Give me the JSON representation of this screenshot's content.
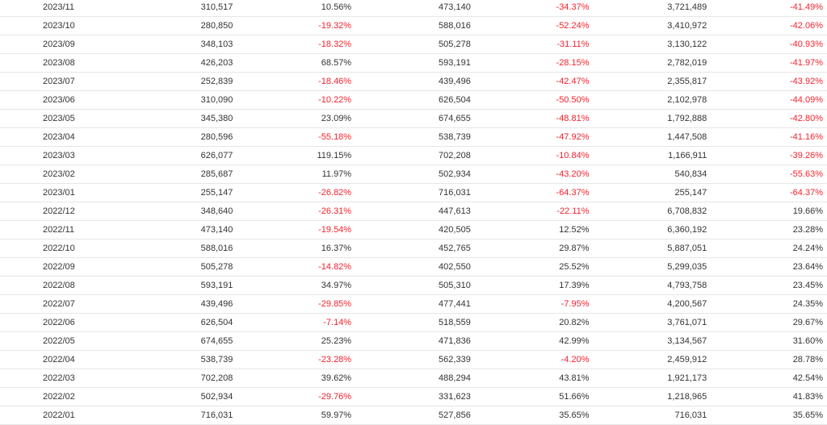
{
  "colors": {
    "negative": "#f5222d",
    "text": "#333333",
    "row_border": "#e6e6e6"
  },
  "rows": [
    [
      "2023/11",
      "310,517",
      "10.56%",
      "473,140",
      "-34.37%",
      "3,721,489",
      "-41.49%"
    ],
    [
      "2023/10",
      "280,850",
      "-19.32%",
      "588,016",
      "-52.24%",
      "3,410,972",
      "-42.06%"
    ],
    [
      "2023/09",
      "348,103",
      "-18.32%",
      "505,278",
      "-31.11%",
      "3,130,122",
      "-40.93%"
    ],
    [
      "2023/08",
      "426,203",
      "68.57%",
      "593,191",
      "-28.15%",
      "2,782,019",
      "-41.97%"
    ],
    [
      "2023/07",
      "252,839",
      "-18.46%",
      "439,496",
      "-42.47%",
      "2,355,817",
      "-43.92%"
    ],
    [
      "2023/06",
      "310,090",
      "-10.22%",
      "626,504",
      "-50.50%",
      "2,102,978",
      "-44.09%"
    ],
    [
      "2023/05",
      "345,380",
      "23.09%",
      "674,655",
      "-48.81%",
      "1,792,888",
      "-42.80%"
    ],
    [
      "2023/04",
      "280,596",
      "-55.18%",
      "538,739",
      "-47.92%",
      "1,447,508",
      "-41.16%"
    ],
    [
      "2023/03",
      "626,077",
      "119.15%",
      "702,208",
      "-10.84%",
      "1,166,911",
      "-39.26%"
    ],
    [
      "2023/02",
      "285,687",
      "11.97%",
      "502,934",
      "-43.20%",
      "540,834",
      "-55.63%"
    ],
    [
      "2023/01",
      "255,147",
      "-26.82%",
      "716,031",
      "-64.37%",
      "255,147",
      "-64.37%"
    ],
    [
      "2022/12",
      "348,640",
      "-26.31%",
      "447,613",
      "-22.11%",
      "6,708,832",
      "19.66%"
    ],
    [
      "2022/11",
      "473,140",
      "-19.54%",
      "420,505",
      "12.52%",
      "6,360,192",
      "23.28%"
    ],
    [
      "2022/10",
      "588,016",
      "16.37%",
      "452,765",
      "29.87%",
      "5,887,051",
      "24.24%"
    ],
    [
      "2022/09",
      "505,278",
      "-14.82%",
      "402,550",
      "25.52%",
      "5,299,035",
      "23.64%"
    ],
    [
      "2022/08",
      "593,191",
      "34.97%",
      "505,310",
      "17.39%",
      "4,793,758",
      "23.45%"
    ],
    [
      "2022/07",
      "439,496",
      "-29.85%",
      "477,441",
      "-7.95%",
      "4,200,567",
      "24.35%"
    ],
    [
      "2022/06",
      "626,504",
      "-7.14%",
      "518,559",
      "20.82%",
      "3,761,071",
      "29.67%"
    ],
    [
      "2022/05",
      "674,655",
      "25.23%",
      "471,836",
      "42.99%",
      "3,134,567",
      "31.60%"
    ],
    [
      "2022/04",
      "538,739",
      "-23.28%",
      "562,339",
      "-4.20%",
      "2,459,912",
      "28.78%"
    ],
    [
      "2022/03",
      "702,208",
      "39.62%",
      "488,294",
      "43.81%",
      "1,921,173",
      "42.54%"
    ],
    [
      "2022/02",
      "502,934",
      "-29.76%",
      "331,623",
      "51.66%",
      "1,218,965",
      "41.83%"
    ],
    [
      "2022/01",
      "716,031",
      "59.97%",
      "527,856",
      "35.65%",
      "716,031",
      "35.65%"
    ]
  ]
}
